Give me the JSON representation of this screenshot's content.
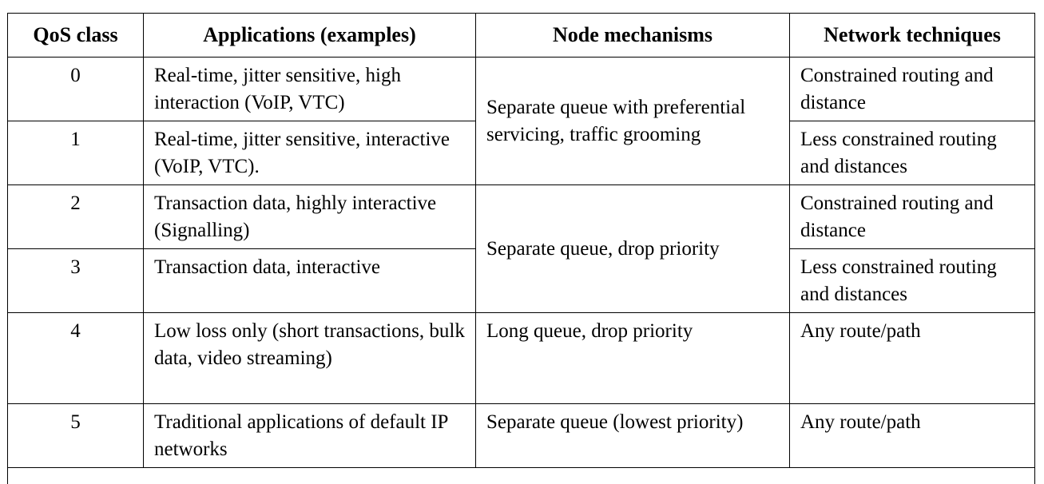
{
  "table": {
    "headers": [
      "QoS class",
      "Applications (examples)",
      "Node mechanisms",
      "Network techniques"
    ],
    "rows": [
      {
        "cls": "0",
        "app": "Real-time, jitter sensitive, high interaction (VoIP, VTC)",
        "net": "Constrained routing and distance"
      },
      {
        "cls": "1",
        "app": "Real-time, jitter sensitive, interactive (VoIP, VTC).",
        "net": "Less constrained routing and distances"
      },
      {
        "cls": "2",
        "app": "Transaction data, highly interactive (Signalling)",
        "net": "Constrained routing and distance"
      },
      {
        "cls": "3",
        "app": "Transaction data, interactive",
        "net": "Less constrained routing and distances"
      },
      {
        "cls": "4",
        "app": "Low loss only (short transactions, bulk data, video streaming)",
        "node": "Long queue, drop priority",
        "net": "Any route/path"
      },
      {
        "cls": "5",
        "app": "Traditional applications of default IP networks",
        "node": "Separate queue (lowest priority)",
        "net": "Any route/path"
      }
    ],
    "node_groups": [
      "Separate queue with preferential servicing, traffic grooming",
      "Separate queue, drop priority"
    ]
  }
}
